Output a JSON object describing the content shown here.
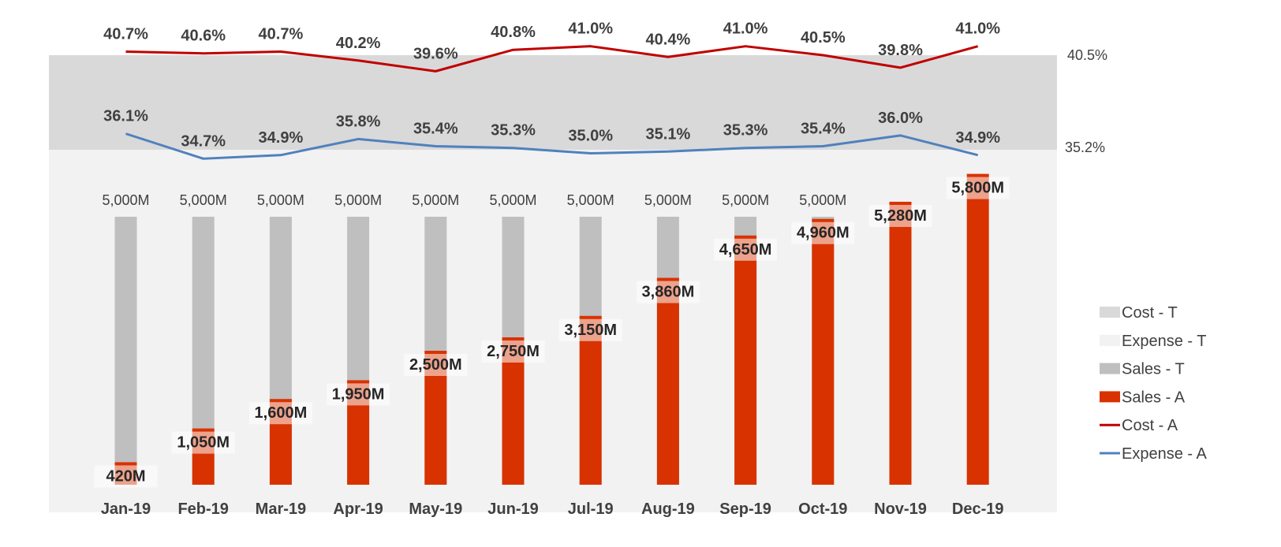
{
  "chart_data": {
    "type": "bar",
    "categories": [
      "Jan-19",
      "Feb-19",
      "Mar-19",
      "Apr-19",
      "May-19",
      "Jun-19",
      "Jul-19",
      "Aug-19",
      "Sep-19",
      "Oct-19",
      "Nov-19",
      "Dec-19"
    ],
    "bar_ylim": [
      0,
      6200
    ],
    "series": [
      {
        "name": "Sales - T",
        "kind": "bar",
        "color": "#bfbfbf",
        "values": [
          5000,
          5000,
          5000,
          5000,
          5000,
          5000,
          5000,
          5000,
          5000,
          5000,
          null,
          null
        ],
        "labels": [
          "5,000M",
          "5,000M",
          "5,000M",
          "5,000M",
          "5,000M",
          "5,000M",
          "5,000M",
          "5,000M",
          "5,000M",
          "5,000M",
          "",
          ""
        ]
      },
      {
        "name": "Sales - A",
        "kind": "bar",
        "color": "#d83200",
        "values": [
          420,
          1050,
          1600,
          1950,
          2500,
          2750,
          3150,
          3860,
          4650,
          4960,
          5280,
          5800
        ],
        "labels": [
          "420M",
          "1,050M",
          "1,600M",
          "1,950M",
          "2,500M",
          "2,750M",
          "3,150M",
          "3,860M",
          "4,650M",
          "4,960M",
          "5,280M",
          "5,800M"
        ]
      },
      {
        "name": "Cost - A",
        "kind": "line",
        "color": "#c00000",
        "values": [
          40.7,
          40.6,
          40.7,
          40.2,
          39.6,
          40.8,
          41.0,
          40.4,
          41.0,
          40.5,
          39.8,
          41.0
        ],
        "labels": [
          "40.7%",
          "40.6%",
          "40.7%",
          "40.2%",
          "39.6%",
          "40.8%",
          "41.0%",
          "40.4%",
          "41.0%",
          "40.5%",
          "39.8%",
          "41.0%"
        ]
      },
      {
        "name": "Expense - A",
        "kind": "line",
        "color": "#4f81bd",
        "values": [
          36.1,
          34.7,
          34.9,
          35.8,
          35.4,
          35.3,
          35.0,
          35.1,
          35.3,
          35.4,
          36.0,
          34.9
        ],
        "labels": [
          "36.1%",
          "34.7%",
          "34.9%",
          "35.8%",
          "35.4%",
          "35.3%",
          "35.0%",
          "35.1%",
          "35.3%",
          "35.4%",
          "36.0%",
          "34.9%"
        ]
      }
    ],
    "bands": [
      {
        "name": "Cost - T",
        "color": "#d9d9d9",
        "value": 40.5,
        "label": "40.5%"
      },
      {
        "name": "Expense - T",
        "color": "#f2f2f2",
        "value": 35.2,
        "label": "35.2%"
      }
    ],
    "legend": {
      "position": "right",
      "items": [
        {
          "name": "Cost - T",
          "shape": "rect",
          "color": "#d9d9d9"
        },
        {
          "name": "Expense - T",
          "shape": "rect",
          "color": "#f2f2f2"
        },
        {
          "name": "Sales - T",
          "shape": "rect",
          "color": "#bfbfbf"
        },
        {
          "name": "Sales - A",
          "shape": "rect",
          "color": "#d83200"
        },
        {
          "name": "Cost - A",
          "shape": "line",
          "color": "#c00000"
        },
        {
          "name": "Expense - A",
          "shape": "line",
          "color": "#4f81bd"
        }
      ]
    }
  }
}
